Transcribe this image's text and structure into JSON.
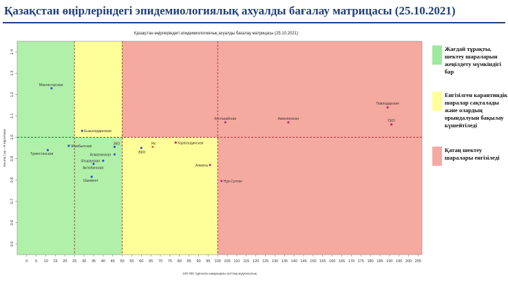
{
  "slide": {
    "title": "Қазақстан өңірлеріндегі эпидемиологиялық ахуалды бағалау матрицасы  (25.10.2021)"
  },
  "legend": [
    {
      "label": "Жағдай тұрақты, шектеу шараларын жеңілдету мүмкіндігі бар",
      "color": "#9fe89f"
    },
    {
      "label": "Енгізілген карантиндік шаралар сақталады және олардың орындалуын бақылау күшейтіледі",
      "color": "#ffff99"
    },
    {
      "label": "Қатаң шектеу шаралары енгізіледі",
      "color": "#f5a9a3"
    }
  ],
  "chart_data": {
    "type": "scatter",
    "title": "Қазақстан өңірлеріндегі эпидемиологиялық ахуалды бағалау матрицасы  (25.10.2021)",
    "xlabel": "100 000 тұрғынға шаққандағы аптлық жұқпалылық",
    "ylabel": "Босатқ.тық – R көрсеткіші",
    "xlim": [
      -5,
      207
    ],
    "ylim": [
      0.45,
      1.45
    ],
    "xticks": [
      0,
      5,
      10,
      15,
      20,
      25,
      30,
      35,
      40,
      45,
      50,
      55,
      60,
      65,
      70,
      75,
      80,
      85,
      90,
      95,
      100,
      105,
      110,
      115,
      120,
      125,
      130,
      135,
      140,
      145,
      150,
      155,
      160,
      165,
      170,
      175,
      180,
      185,
      190,
      195,
      200,
      205
    ],
    "yticks": [
      "0.5",
      "0.6",
      "0.7",
      "0.8",
      "0.9",
      "1.0",
      "1.1",
      "1.2",
      "1.3",
      "1.4"
    ],
    "zones": [
      {
        "x": [
          -5,
          50
        ],
        "y": [
          0.45,
          1.45
        ],
        "color": "#b0f0a8"
      },
      {
        "x": [
          25,
          50
        ],
        "y": [
          1.0,
          1.45
        ],
        "color": "#ffff99"
      },
      {
        "x": [
          50,
          100
        ],
        "y": [
          0.45,
          1.0
        ],
        "color": "#ffff99"
      },
      {
        "x": [
          50,
          207
        ],
        "y": [
          1.0,
          1.45
        ],
        "color": "#f5aaa0"
      },
      {
        "x": [
          100,
          207
        ],
        "y": [
          0.45,
          1.0
        ],
        "color": "#f5aaa0"
      }
    ],
    "threshold_lines": {
      "x": [
        25,
        50,
        100
      ],
      "y": [
        1.0
      ]
    },
    "points": [
      {
        "name": "Мангистауская",
        "x": 13,
        "y": 1.23,
        "color": "#2e54c7"
      },
      {
        "name": "Кызылординская",
        "x": 29,
        "y": 1.03,
        "color": "#2e54c7"
      },
      {
        "name": "Жамбылская",
        "x": 22,
        "y": 0.96,
        "color": "#2e54c7"
      },
      {
        "name": "Туркестанская",
        "x": 11,
        "y": 0.94,
        "color": "#2e54c7"
      },
      {
        "name": "ЗКО",
        "x": 46,
        "y": 0.955,
        "color": "#2e54c7"
      },
      {
        "name": "Алматинская",
        "x": 46,
        "y": 0.92,
        "color": "#2e54c7"
      },
      {
        "name": "Атырауская",
        "x": 40,
        "y": 0.89,
        "color": "#2e54c7"
      },
      {
        "name": "Актюбинская",
        "x": 35,
        "y": 0.875,
        "color": "#2e54c7"
      },
      {
        "name": "Шымкент",
        "x": 34,
        "y": 0.815,
        "color": "#2e54c7"
      },
      {
        "name": "ВКО",
        "x": 60,
        "y": 0.95,
        "color": "#2e54c7"
      },
      {
        "name": "РК",
        "x": 66,
        "y": 0.955,
        "color": "#e8702a"
      },
      {
        "name": "Карагандинская",
        "x": 78,
        "y": 0.975,
        "color": "#c0247a"
      },
      {
        "name": "Алматы",
        "x": 96,
        "y": 0.87,
        "color": "#c0247a"
      },
      {
        "name": "Нур-Султан",
        "x": 102,
        "y": 0.795,
        "color": "#c0247a"
      },
      {
        "name": "Костанайская",
        "x": 104,
        "y": 1.07,
        "color": "#c0247a"
      },
      {
        "name": "Акмолинская",
        "x": 137,
        "y": 1.07,
        "color": "#c0247a"
      },
      {
        "name": "Павлодарская",
        "x": 189,
        "y": 1.14,
        "color": "#c0247a"
      },
      {
        "name": "СКО",
        "x": 191,
        "y": 1.06,
        "color": "#c0247a"
      }
    ]
  }
}
